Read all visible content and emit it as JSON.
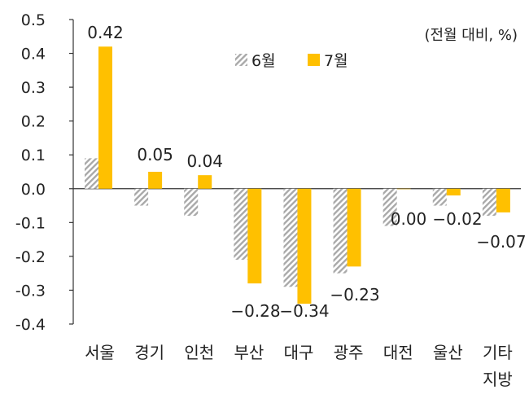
{
  "chart_data": {
    "type": "bar",
    "unit_note": "(전월 대비, %)",
    "categories": [
      "서울",
      "경기",
      "인천",
      "부산",
      "대구",
      "광주",
      "대전",
      "울산",
      "기타\n지방"
    ],
    "series": [
      {
        "name": "6월",
        "values": [
          0.09,
          -0.05,
          -0.08,
          -0.21,
          -0.29,
          -0.25,
          -0.11,
          -0.05,
          -0.08
        ],
        "color": "#b7b7b7",
        "pattern": "diagonal-hatch"
      },
      {
        "name": "7월",
        "values": [
          0.42,
          0.05,
          0.04,
          -0.28,
          -0.34,
          -0.23,
          0.0,
          -0.02,
          -0.07
        ],
        "color": "#ffc000",
        "labels": [
          "0.42",
          "0.05",
          "0.04",
          "−0.28",
          "−0.34",
          "−0.23",
          "0.00",
          "−0.02",
          "−0.07"
        ]
      }
    ],
    "ylim": [
      -0.4,
      0.5
    ],
    "yticks": [
      "0.5",
      "0.4",
      "0.3",
      "0.2",
      "0.1",
      "0.0",
      "-0.1",
      "-0.2",
      "-0.3",
      "-0.4"
    ],
    "ytick_values": [
      0.5,
      0.4,
      0.3,
      0.2,
      0.1,
      0.0,
      -0.1,
      -0.2,
      -0.3,
      -0.4
    ],
    "legend_position": "top-center",
    "grid": false
  }
}
